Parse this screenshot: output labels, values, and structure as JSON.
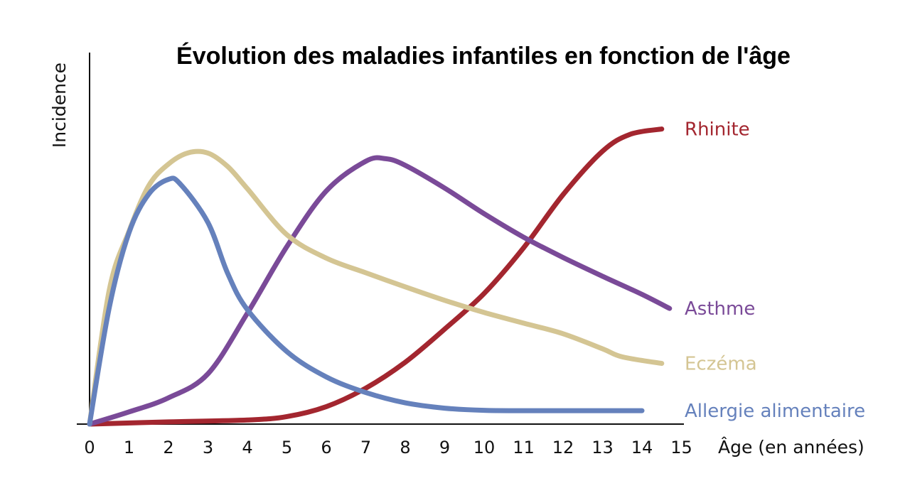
{
  "chart_data": {
    "type": "line",
    "title": "Évolution des maladies infantiles en fonction de l'âge",
    "xlabel": "Âge (en années)",
    "ylabel": "Incidence",
    "xlim": [
      0,
      15
    ],
    "ylim": [
      0,
      100
    ],
    "x_ticks": [
      "0",
      "1",
      "2",
      "3",
      "4",
      "5",
      "6",
      "7",
      "8",
      "9",
      "10",
      "11",
      "12",
      "13",
      "14",
      "15"
    ],
    "grid": false,
    "legend": "inline labels at line ends (right)",
    "series": [
      {
        "name": "Rhinite",
        "color": "#a3262f",
        "points": [
          [
            0,
            0
          ],
          [
            2,
            0.7
          ],
          [
            4,
            1.3
          ],
          [
            5,
            2.4
          ],
          [
            6,
            5.6
          ],
          [
            7,
            11.5
          ],
          [
            8,
            19.8
          ],
          [
            9,
            30.4
          ],
          [
            10,
            41.8
          ],
          [
            11,
            56.4
          ],
          [
            12,
            73.4
          ],
          [
            13,
            87.3
          ],
          [
            13.7,
            92.7
          ],
          [
            14.5,
            94.4
          ]
        ]
      },
      {
        "name": "Asthme",
        "color": "#7a4a98",
        "points": [
          [
            0,
            0
          ],
          [
            1,
            3.9
          ],
          [
            2,
            8.4
          ],
          [
            3,
            16.1
          ],
          [
            4,
            35.5
          ],
          [
            5,
            56.8
          ],
          [
            6,
            74.6
          ],
          [
            7,
            84.1
          ],
          [
            7.5,
            84.9
          ],
          [
            8,
            82.8
          ],
          [
            9,
            75.5
          ],
          [
            10,
            67.3
          ],
          [
            11,
            59.8
          ],
          [
            12,
            53.3
          ],
          [
            13,
            47.3
          ],
          [
            14,
            41.5
          ],
          [
            14.7,
            37
          ]
        ]
      },
      {
        "name": "Eczéma",
        "color": "#d4c593",
        "points": [
          [
            0,
            0
          ],
          [
            0.5,
            43
          ],
          [
            1,
            61.7
          ],
          [
            1.5,
            76.3
          ],
          [
            2,
            83.2
          ],
          [
            2.5,
            86.8
          ],
          [
            3,
            86.7
          ],
          [
            3.5,
            82.4
          ],
          [
            4,
            75.3
          ],
          [
            5,
            60.6
          ],
          [
            6,
            53.1
          ],
          [
            7,
            48.4
          ],
          [
            8,
            43.9
          ],
          [
            9,
            39.6
          ],
          [
            10,
            35.7
          ],
          [
            11,
            32.3
          ],
          [
            12,
            28.9
          ],
          [
            13,
            24.1
          ],
          [
            13.5,
            21.5
          ],
          [
            14.5,
            19.4
          ]
        ]
      },
      {
        "name": "Allergie alimentaire",
        "color": "#6581bc",
        "points": [
          [
            0,
            0
          ],
          [
            0.5,
            37.4
          ],
          [
            1,
            61.3
          ],
          [
            1.5,
            73.6
          ],
          [
            2,
            78.3
          ],
          [
            2.3,
            76.8
          ],
          [
            3,
            64.5
          ],
          [
            3.5,
            48.2
          ],
          [
            4,
            36.6
          ],
          [
            5,
            23.2
          ],
          [
            6,
            15.1
          ],
          [
            7,
            10.1
          ],
          [
            8,
            6.8
          ],
          [
            9,
            5.1
          ],
          [
            10,
            4.4
          ],
          [
            11,
            4.3
          ],
          [
            12,
            4.3
          ],
          [
            13,
            4.3
          ],
          [
            14,
            4.3
          ]
        ]
      }
    ]
  }
}
